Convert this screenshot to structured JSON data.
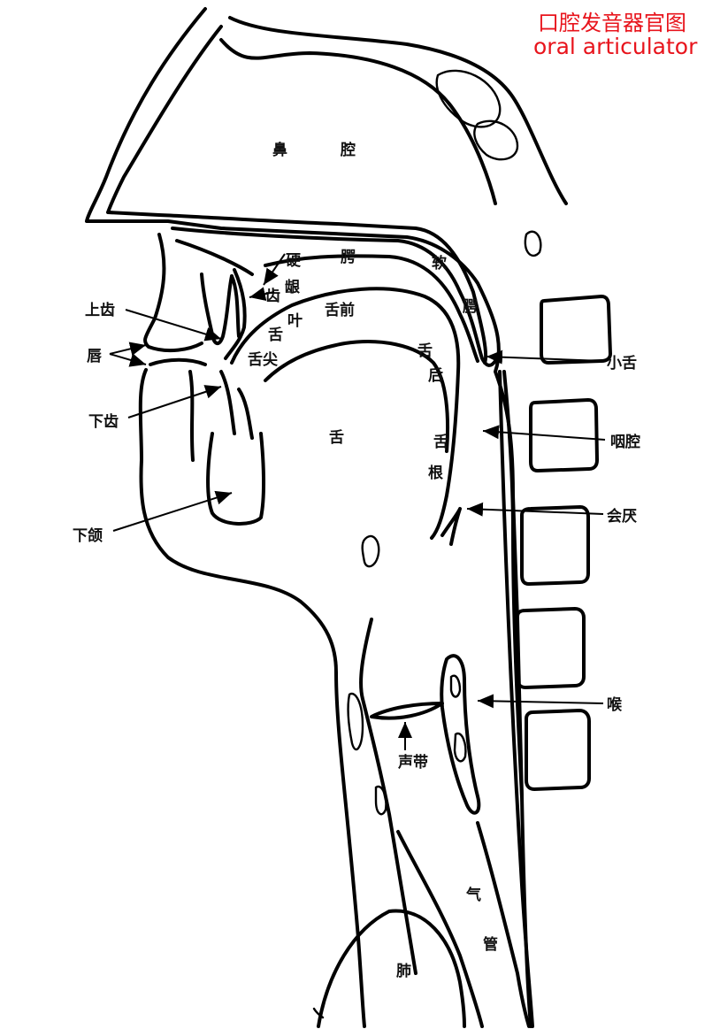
{
  "title": {
    "zh": "口腔发音器官图",
    "en": "oral articulator",
    "color": "#e8141c"
  },
  "labels": {
    "nasal_cavity_1": "鼻",
    "nasal_cavity_2": "腔",
    "hard_1": "硬",
    "palate_1": "腭",
    "soft_1": "软",
    "palate_2": "腭",
    "alveolar_1": "齿",
    "alveolar_2": "龈",
    "blade_1": "叶",
    "blade_2": "舌",
    "tongue_front": "舌前",
    "tongue_tip": "舌尖",
    "tongue_back_1": "舌",
    "tongue_back_2": "后",
    "tongue": "舌",
    "root_1": "舌",
    "root_2": "根",
    "vocal_cords": "声带",
    "trachea_1": "气",
    "trachea_2": "管",
    "lung": "肺"
  },
  "callouts": {
    "upper_teeth": "上齿",
    "lips": "唇",
    "lower_teeth": "下齿",
    "jaw": "下颌",
    "uvula": "小舌",
    "pharynx": "咽腔",
    "epiglottis": "会厌",
    "larynx": "喉"
  }
}
